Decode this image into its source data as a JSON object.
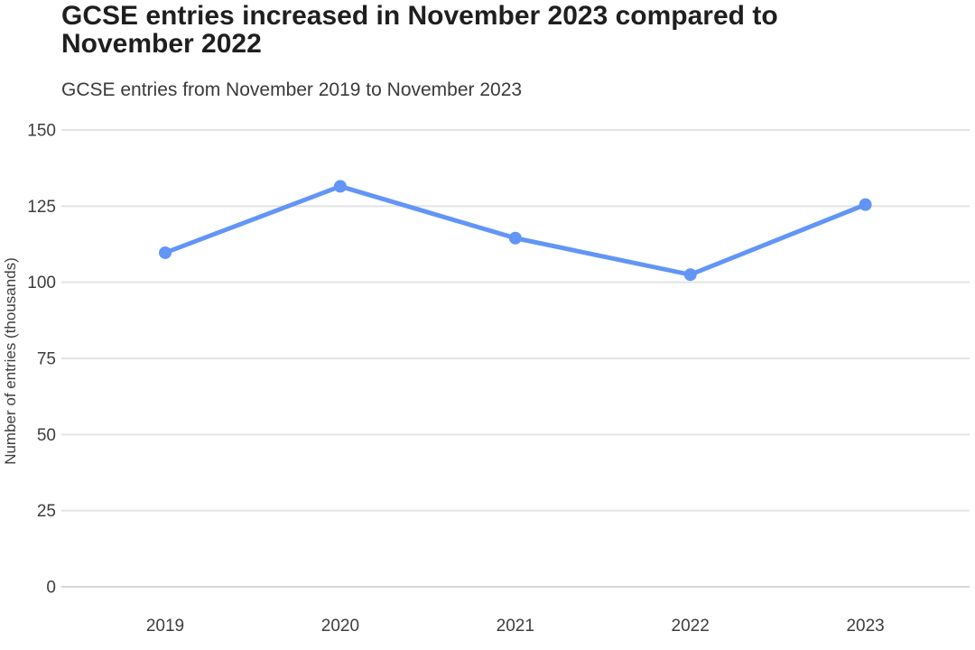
{
  "chart_data": {
    "type": "line",
    "title": "GCSE entries increased in November 2023 compared to November 2022",
    "subtitle": "GCSE entries from November 2019 to November 2023",
    "x": [
      "2019",
      "2020",
      "2021",
      "2022",
      "2023"
    ],
    "series": [
      {
        "name": "GCSE entries",
        "values": [
          109.7,
          131.5,
          114.5,
          102.5,
          125.5
        ]
      }
    ],
    "xlabel": "",
    "ylabel": "Number of entries (thousands)",
    "ylim": [
      0,
      150
    ],
    "yticks": [
      0,
      25,
      50,
      75,
      100,
      125,
      150
    ],
    "grid": "horizontal",
    "legend": "none",
    "markers": "circle",
    "colors": {
      "line": "#6295F5",
      "grid": "#e3e3e3",
      "zero_line": "#d6d6d6",
      "text": "#3d3d3d",
      "title": "#1f1f1f"
    }
  }
}
